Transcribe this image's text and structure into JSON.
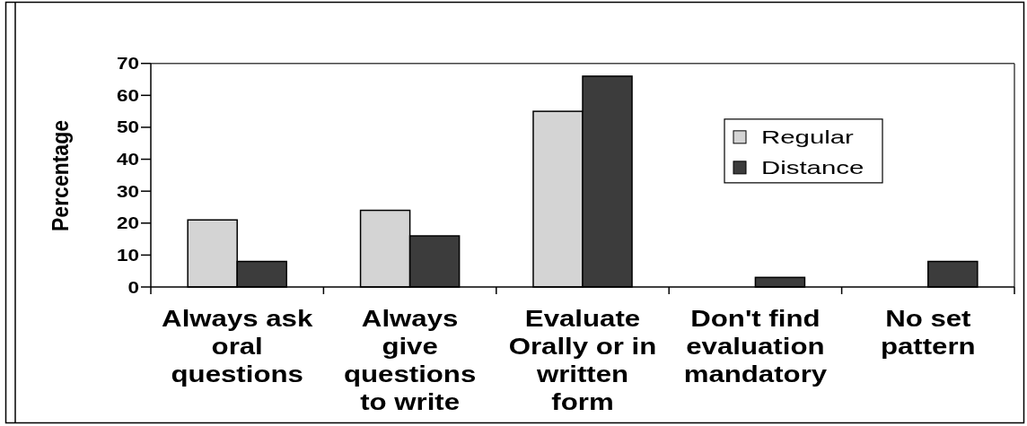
{
  "chart_data": {
    "type": "bar",
    "ylabel": "Percentage",
    "categories": [
      "Always ask oral questions",
      "Always give questions to write",
      "Evaluate Orally or in written form",
      "Don't find evaluation mandatory",
      "No set pattern"
    ],
    "series": [
      {
        "name": "Regular",
        "color": "#d4d4d4",
        "values": [
          21,
          24,
          55,
          0,
          0
        ]
      },
      {
        "name": "Distance",
        "color": "#3c3c3c",
        "values": [
          8,
          16,
          66,
          3,
          8
        ]
      }
    ],
    "ylim": [
      0,
      70
    ],
    "yticks": [
      0,
      10,
      20,
      30,
      40,
      50,
      60,
      70
    ],
    "legend": "right"
  }
}
